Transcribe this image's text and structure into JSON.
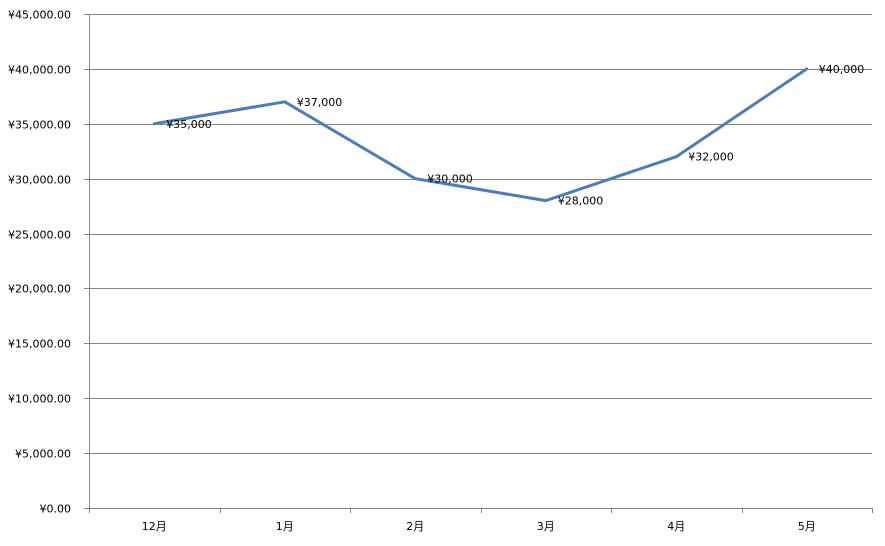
{
  "chart_data": {
    "type": "line",
    "categories": [
      "12月",
      "1月",
      "2月",
      "3月",
      "4月",
      "5月"
    ],
    "series": [
      {
        "values": [
          35000,
          37000,
          30000,
          28000,
          32000,
          40000
        ],
        "data_labels": [
          "¥35,000",
          "¥37,000",
          "¥30,000",
          "¥28,000",
          "¥32,000",
          "¥40,000"
        ],
        "color": "#4a7ebb"
      }
    ],
    "y_ticks": [
      0,
      5000,
      10000,
      15000,
      20000,
      25000,
      30000,
      35000,
      40000,
      45000
    ],
    "y_tick_labels": [
      "¥0.00",
      "¥5,000.00",
      "¥10,000.00",
      "¥15,000.00",
      "¥20,000.00",
      "¥25,000.00",
      "¥30,000.00",
      "¥35,000.00",
      "¥40,000.00",
      "¥45,000.00"
    ],
    "ylim": [
      0,
      45000
    ],
    "grid": true,
    "legend": "none",
    "gridline_color": "#868686",
    "axis_color": "#868686"
  }
}
